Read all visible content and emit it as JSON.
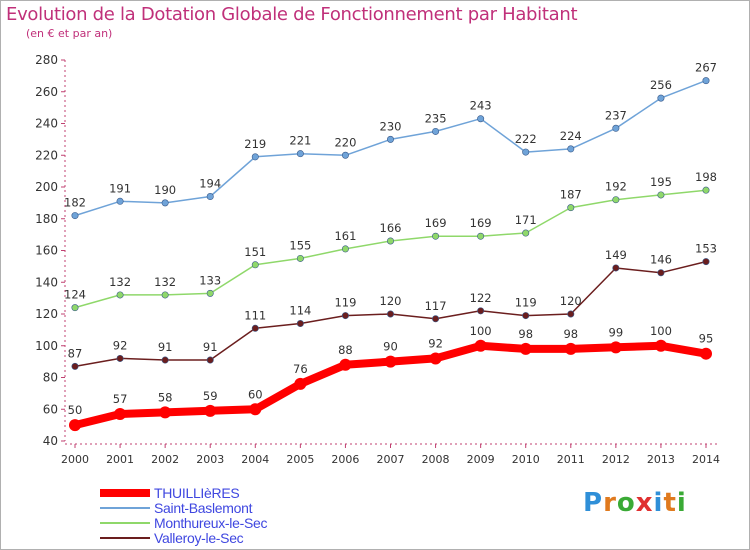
{
  "header": {
    "title": "Evolution de la Dotation Globale de Fonctionnement par Habitant",
    "subtitle": "(en € et par an)"
  },
  "logo": {
    "letters": [
      "P",
      "r",
      "o",
      "x",
      "i",
      "t",
      "i"
    ],
    "colors": [
      "#2f8fd8",
      "#e07a1e",
      "#3aaa35",
      "#e03030",
      "#2f8fd8",
      "#e07a1e",
      "#3aaa35"
    ]
  },
  "chart_data": {
    "type": "line",
    "title": "Evolution de la Dotation Globale de Fonctionnement par Habitant",
    "subtitle": "(en € et par an)",
    "xlabel": "",
    "ylabel": "",
    "x": [
      "2000",
      "2001",
      "2002",
      "2003",
      "2004",
      "2005",
      "2006",
      "2007",
      "2008",
      "2009",
      "2010",
      "2011",
      "2012",
      "2013",
      "2014"
    ],
    "ylim": [
      40,
      280
    ],
    "yticks": [
      40,
      60,
      80,
      100,
      120,
      140,
      160,
      180,
      200,
      220,
      240,
      260,
      280
    ],
    "grid": false,
    "legend": "bottom-left",
    "series": [
      {
        "name": "THUILLIèRES",
        "color": "#ff0000",
        "values": [
          50,
          57,
          58,
          59,
          60,
          76,
          88,
          90,
          92,
          100,
          98,
          98,
          99,
          100,
          95
        ]
      },
      {
        "name": "Saint-Baslemont",
        "color": "#6fa3d8",
        "values": [
          182,
          191,
          190,
          194,
          219,
          221,
          220,
          230,
          235,
          243,
          222,
          224,
          237,
          256,
          267
        ]
      },
      {
        "name": "Monthureux-le-Sec",
        "color": "#8fd86a",
        "values": [
          124,
          132,
          132,
          133,
          151,
          155,
          161,
          166,
          169,
          169,
          171,
          187,
          192,
          195,
          198
        ]
      },
      {
        "name": "Valleroy-le-Sec",
        "color": "#6b1e1e",
        "values": [
          87,
          92,
          91,
          91,
          111,
          114,
          119,
          120,
          117,
          122,
          119,
          120,
          149,
          146,
          153
        ]
      }
    ]
  }
}
